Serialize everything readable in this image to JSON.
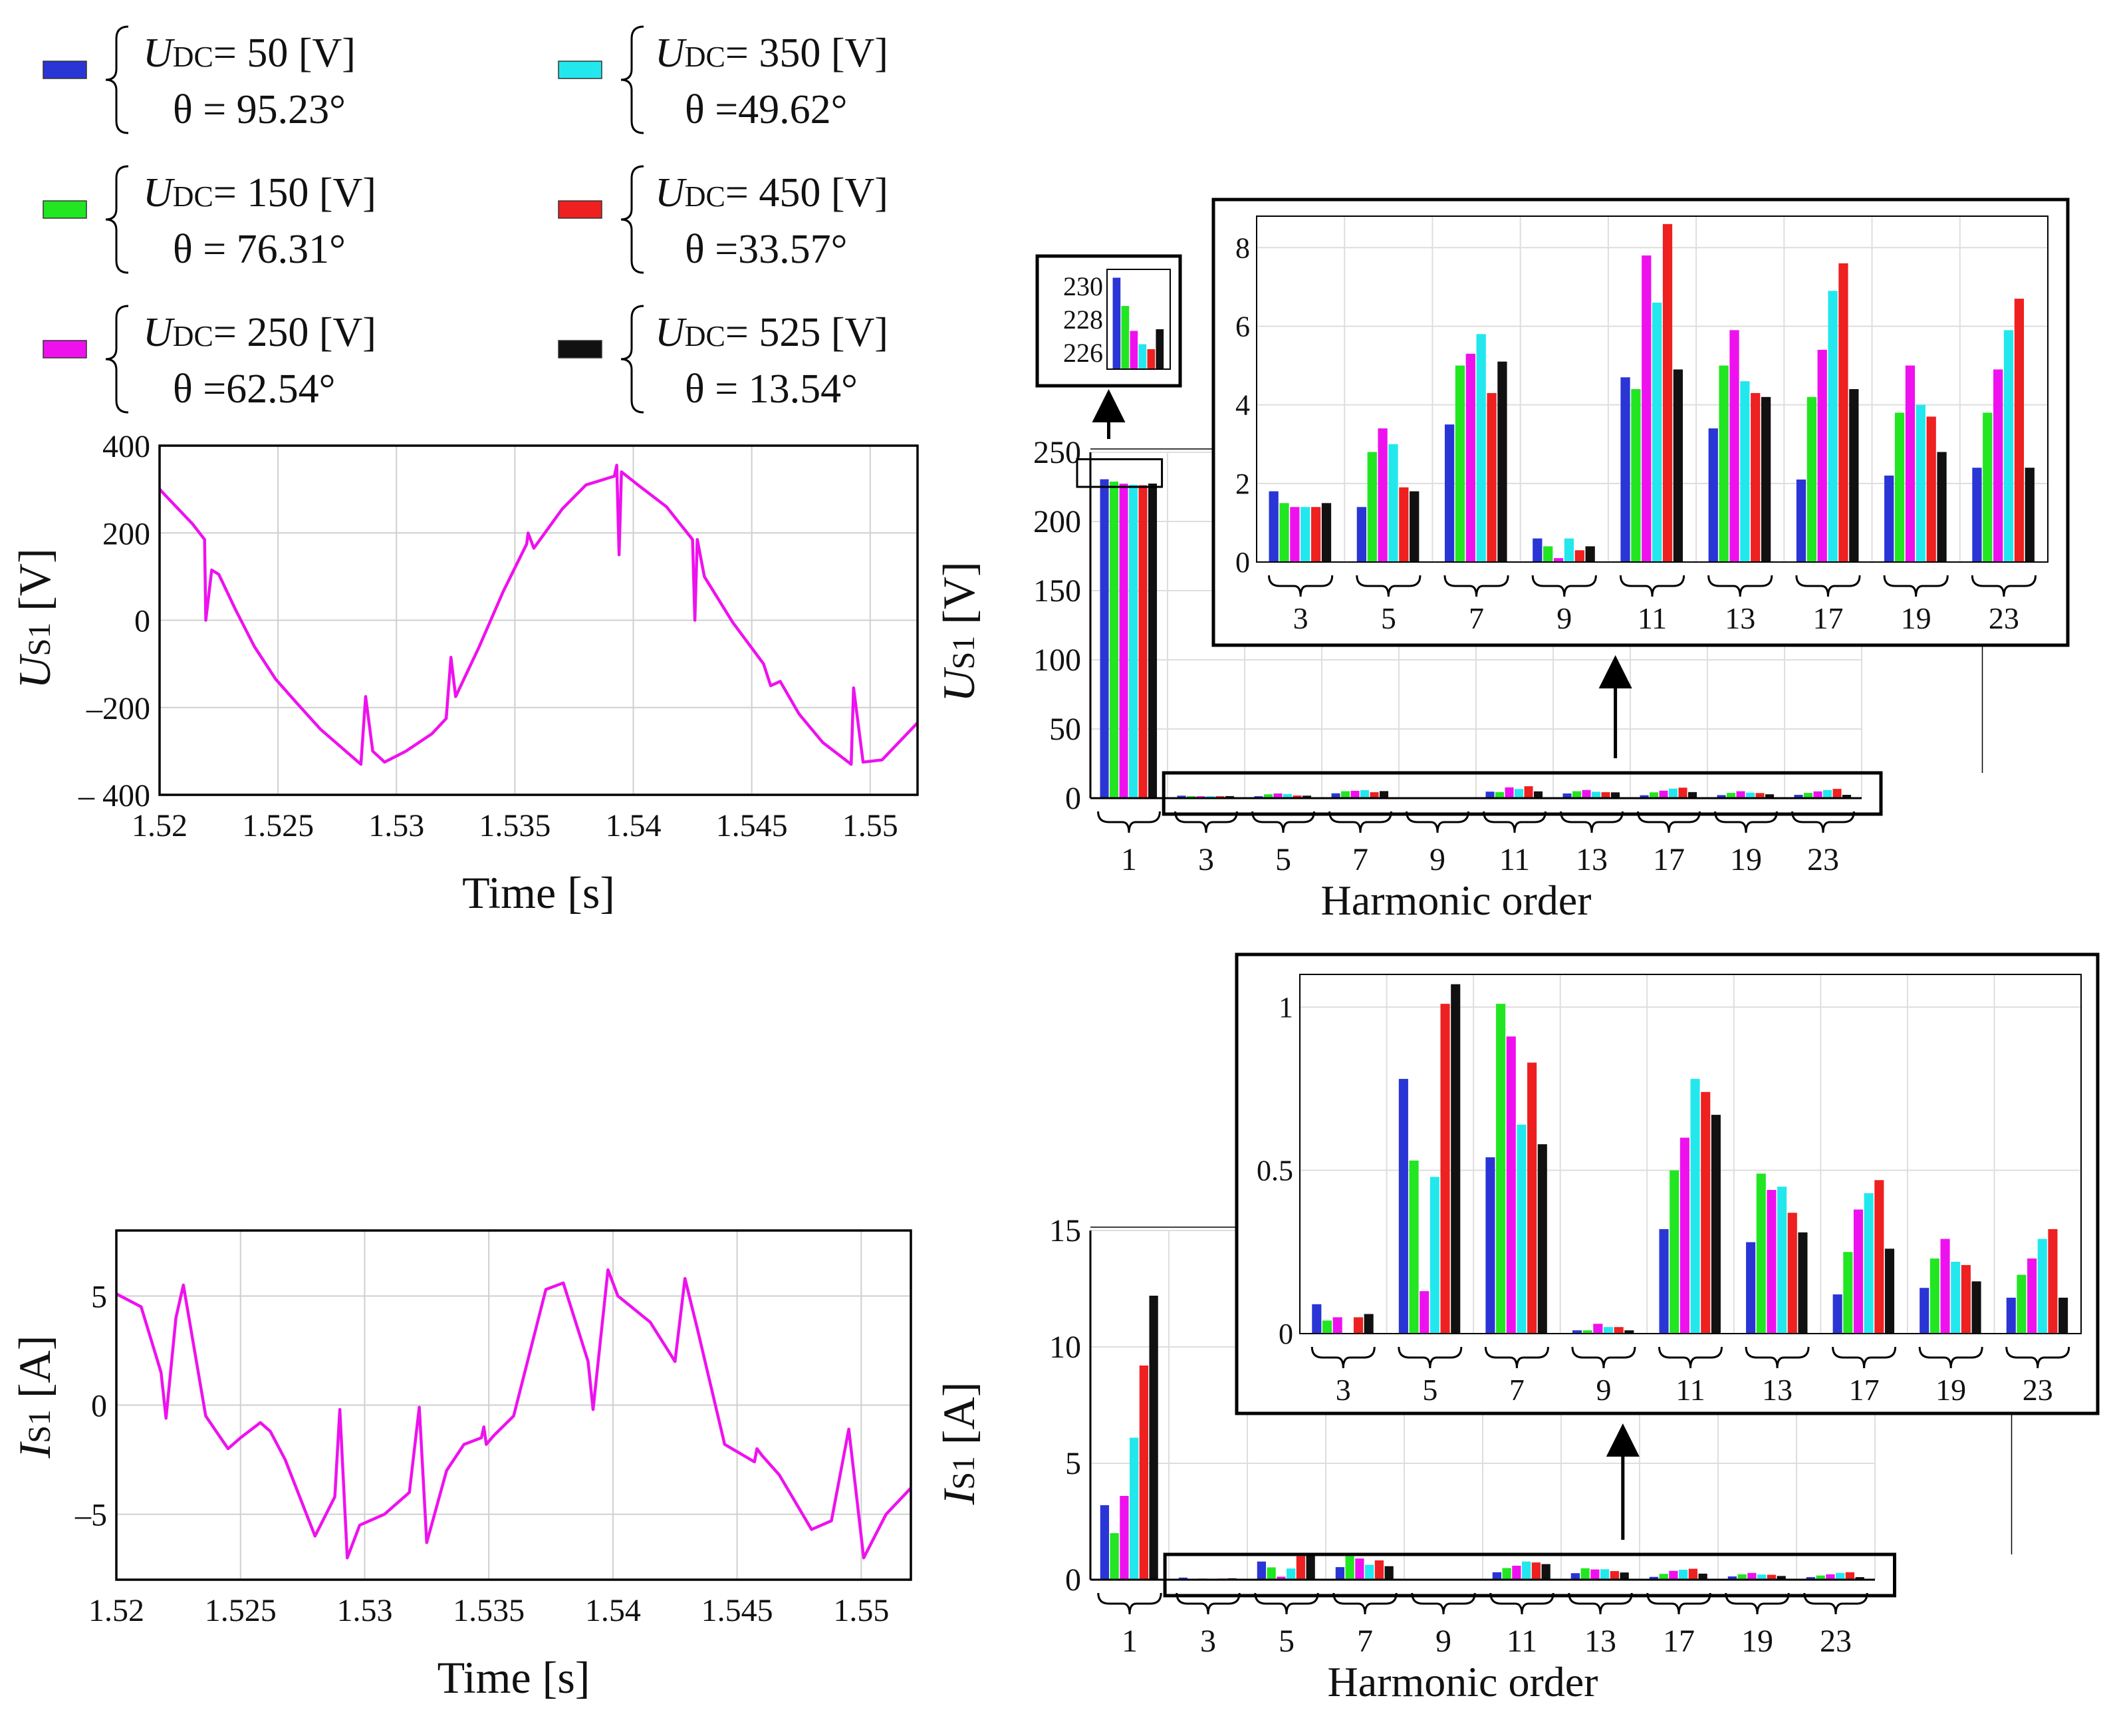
{
  "legend": {
    "items": [
      {
        "label": "U",
        "sub": "DC",
        "udc_text": "= 50  [V]",
        "theta_text": "θ  = 95.23°",
        "color": "#2a35d6"
      },
      {
        "label": "U",
        "sub": "DC",
        "udc_text": "= 150 [V]",
        "theta_text": "θ  = 76.31°",
        "color": "#22e622"
      },
      {
        "label": "U",
        "sub": "DC",
        "udc_text": "= 250 [V]",
        "theta_text": "θ  =62.54°",
        "color": "#ee11ee"
      },
      {
        "label": "U",
        "sub": "DC",
        "udc_text": "= 350 [V]",
        "theta_text": "θ  =49.62°",
        "color": "#22e8ee"
      },
      {
        "label": "U",
        "sub": "DC",
        "udc_text": "= 450  [V]",
        "theta_text": "θ  =33.57°",
        "color": "#ee2020"
      },
      {
        "label": "U",
        "sub": "DC",
        "udc_text": "= 525  [V]",
        "theta_text": "θ  = 13.54°",
        "color": "#111111"
      }
    ]
  },
  "chart_data": [
    {
      "id": "us1_time",
      "type": "line",
      "ylabel": "U",
      "ylabel_sub": "S1",
      "ylabel_unit": "[V]",
      "xlabel": "Time [s]",
      "xlim": [
        1.52,
        1.552
      ],
      "ylim": [
        -400,
        400
      ],
      "xticks": [
        1.52,
        1.525,
        1.53,
        1.535,
        1.54,
        1.545,
        1.55
      ],
      "xtick_labels": [
        "1.52",
        "1.525",
        "1.53",
        "1.535",
        "1.54",
        "1.545",
        "1.55"
      ],
      "yticks": [
        -400,
        -200,
        0,
        200,
        400
      ],
      "ytick_labels": [
        "– 400",
        "–200",
        "0",
        "200",
        "400"
      ],
      "grid": true,
      "color": "#ee11ee",
      "x": [
        1.52,
        1.5214,
        1.5219,
        1.52195,
        1.5222,
        1.5225,
        1.5232,
        1.524,
        1.5249,
        1.5258,
        1.5268,
        1.5285,
        1.5287,
        1.529,
        1.5292,
        1.5295,
        1.5304,
        1.5315,
        1.5321,
        1.5323,
        1.5325,
        1.5335,
        1.5345,
        1.5355,
        1.53556,
        1.5358,
        1.537,
        1.538,
        1.5392,
        1.5393,
        1.5394,
        1.5395,
        1.5402,
        1.5414,
        1.5425,
        1.5426,
        1.5427,
        1.543,
        1.5442,
        1.5455,
        1.5458,
        1.5462,
        1.547,
        1.548,
        1.5492,
        1.5493,
        1.5497,
        1.5505,
        1.552
      ],
      "y": [
        300,
        220,
        185,
        0,
        115,
        105,
        25,
        -60,
        -135,
        -190,
        -250,
        -330,
        -175,
        -300,
        -310,
        -325,
        -300,
        -260,
        -225,
        -85,
        -175,
        -60,
        65,
        175,
        200,
        165,
        255,
        310,
        330,
        355,
        150,
        340,
        310,
        260,
        185,
        0,
        185,
        100,
        -5,
        -100,
        -150,
        -140,
        -215,
        -280,
        -330,
        -155,
        -325,
        -320,
        -235
      ]
    },
    {
      "id": "is1_time",
      "type": "line",
      "ylabel": "I",
      "ylabel_sub": "S1",
      "ylabel_unit": "[A]",
      "xlabel": "Time [s]",
      "xlim": [
        1.52,
        1.552
      ],
      "ylim": [
        -8,
        8
      ],
      "xticks": [
        1.52,
        1.525,
        1.53,
        1.535,
        1.54,
        1.545,
        1.55
      ],
      "xtick_labels": [
        "1.52",
        "1.525",
        "1.53",
        "1.535",
        "1.54",
        "1.545",
        "1.55"
      ],
      "yticks": [
        -5,
        0,
        5
      ],
      "ytick_labels": [
        "–5",
        "0",
        "5"
      ],
      "grid": true,
      "color": "#ee11ee",
      "x": [
        1.52,
        1.521,
        1.5218,
        1.522,
        1.5224,
        1.5227,
        1.5236,
        1.5245,
        1.525,
        1.5258,
        1.5262,
        1.5268,
        1.528,
        1.5288,
        1.529,
        1.5293,
        1.5298,
        1.5308,
        1.5318,
        1.5322,
        1.5325,
        1.5333,
        1.534,
        1.5347,
        1.5348,
        1.5349,
        1.5352,
        1.536,
        1.5373,
        1.538,
        1.539,
        1.5392,
        1.5398,
        1.5402,
        1.5415,
        1.5425,
        1.5429,
        1.5434,
        1.5445,
        1.5457,
        1.5458,
        1.546,
        1.5467,
        1.548,
        1.5488,
        1.5495,
        1.5501,
        1.551,
        1.552
      ],
      "y": [
        5.1,
        4.5,
        1.5,
        -0.6,
        4.0,
        5.5,
        -0.5,
        -2.0,
        -1.5,
        -0.8,
        -1.2,
        -2.5,
        -6.0,
        -4.2,
        -0.2,
        -7.0,
        -5.5,
        -5.0,
        -4.0,
        -0.1,
        -6.3,
        -3.0,
        -1.8,
        -1.5,
        -1.0,
        -1.8,
        -1.4,
        -0.5,
        5.3,
        5.6,
        2.0,
        -0.2,
        6.2,
        5.0,
        3.8,
        2.0,
        5.8,
        3.5,
        -1.8,
        -2.6,
        -2.0,
        -2.3,
        -3.2,
        -5.7,
        -5.3,
        -1.1,
        -7.0,
        -5.0,
        -3.8
      ]
    },
    {
      "id": "us1_harmonics",
      "type": "bar",
      "ylabel": "U",
      "ylabel_sub": "S1",
      "ylabel_unit": "[V]",
      "xlabel": "Harmonic order",
      "categories": [
        "1",
        "3",
        "5",
        "7",
        "9",
        "11",
        "13",
        "17",
        "19",
        "23"
      ],
      "ylim": [
        0,
        250
      ],
      "yticks": [
        0,
        50,
        100,
        150,
        200,
        250
      ],
      "ytick_labels": [
        "0",
        "50",
        "100",
        "150",
        "200",
        "250"
      ],
      "series": [
        {
          "name": "UDC=50",
          "values": [
            230.5,
            1.8,
            1.4,
            3.5,
            0.6,
            4.7,
            3.4,
            2.1,
            2.2,
            2.4
          ]
        },
        {
          "name": "UDC=150",
          "values": [
            228.8,
            1.5,
            2.8,
            5.0,
            0.4,
            4.4,
            5.0,
            4.2,
            3.8,
            3.8
          ]
        },
        {
          "name": "UDC=250",
          "values": [
            227.3,
            1.4,
            3.4,
            5.3,
            0.1,
            7.8,
            5.9,
            5.4,
            5.0,
            4.9
          ]
        },
        {
          "name": "UDC=350",
          "values": [
            226.5,
            1.4,
            3.0,
            5.8,
            0.6,
            6.6,
            4.6,
            6.9,
            4.0,
            5.9
          ]
        },
        {
          "name": "UDC=450",
          "values": [
            226.2,
            1.4,
            1.9,
            4.3,
            0.3,
            8.6,
            4.3,
            7.6,
            3.7,
            6.7
          ]
        },
        {
          "name": "UDC=525",
          "values": [
            227.4,
            1.5,
            1.8,
            5.1,
            0.4,
            4.9,
            4.2,
            4.4,
            2.8,
            2.4
          ]
        }
      ],
      "inset_main": {
        "categories": [
          "1"
        ],
        "ylim": [
          225,
          231
        ],
        "yticks": [
          226,
          228,
          230
        ],
        "ytick_labels": [
          "226",
          "228",
          "230"
        ]
      },
      "inset_harmonics": {
        "categories": [
          "3",
          "5",
          "7",
          "9",
          "11",
          "13",
          "17",
          "19",
          "23"
        ],
        "ylim": [
          0,
          8.8
        ],
        "yticks": [
          0,
          2,
          4,
          6,
          8
        ],
        "ytick_labels": [
          "0",
          "2",
          "4",
          "6",
          "8"
        ]
      }
    },
    {
      "id": "is1_harmonics",
      "type": "bar",
      "ylabel": "I",
      "ylabel_sub": "S1",
      "ylabel_unit": "[A]",
      "xlabel": "Harmonic order",
      "categories": [
        "1",
        "3",
        "5",
        "7",
        "9",
        "11",
        "13",
        "17",
        "19",
        "23"
      ],
      "ylim": [
        0,
        15
      ],
      "yticks": [
        0,
        5,
        10,
        15
      ],
      "ytick_labels": [
        "0",
        "5",
        "10",
        "15"
      ],
      "series": [
        {
          "name": "UDC=50",
          "values": [
            3.2,
            0.09,
            0.78,
            0.54,
            0.01,
            0.32,
            0.28,
            0.12,
            0.14,
            0.11
          ]
        },
        {
          "name": "UDC=150",
          "values": [
            2.0,
            0.04,
            0.53,
            1.01,
            0.01,
            0.5,
            0.49,
            0.25,
            0.23,
            0.18
          ]
        },
        {
          "name": "UDC=250",
          "values": [
            3.6,
            0.05,
            0.13,
            0.91,
            0.03,
            0.6,
            0.44,
            0.38,
            0.29,
            0.23
          ]
        },
        {
          "name": "UDC=350",
          "values": [
            6.1,
            0.0,
            0.48,
            0.64,
            0.02,
            0.78,
            0.45,
            0.43,
            0.22,
            0.29
          ]
        },
        {
          "name": "UDC=450",
          "values": [
            9.2,
            0.05,
            1.01,
            0.83,
            0.02,
            0.74,
            0.37,
            0.47,
            0.21,
            0.32
          ]
        },
        {
          "name": "UDC=525",
          "values": [
            12.2,
            0.06,
            1.07,
            0.58,
            0.01,
            0.67,
            0.31,
            0.26,
            0.16,
            0.11
          ]
        }
      ],
      "inset_harmonics": {
        "categories": [
          "3",
          "5",
          "7",
          "9",
          "11",
          "13",
          "17",
          "19",
          "23"
        ],
        "ylim": [
          0,
          1.1
        ],
        "yticks": [
          0,
          0.5,
          1
        ],
        "ytick_labels": [
          "0",
          "0.5",
          "1"
        ]
      }
    }
  ]
}
